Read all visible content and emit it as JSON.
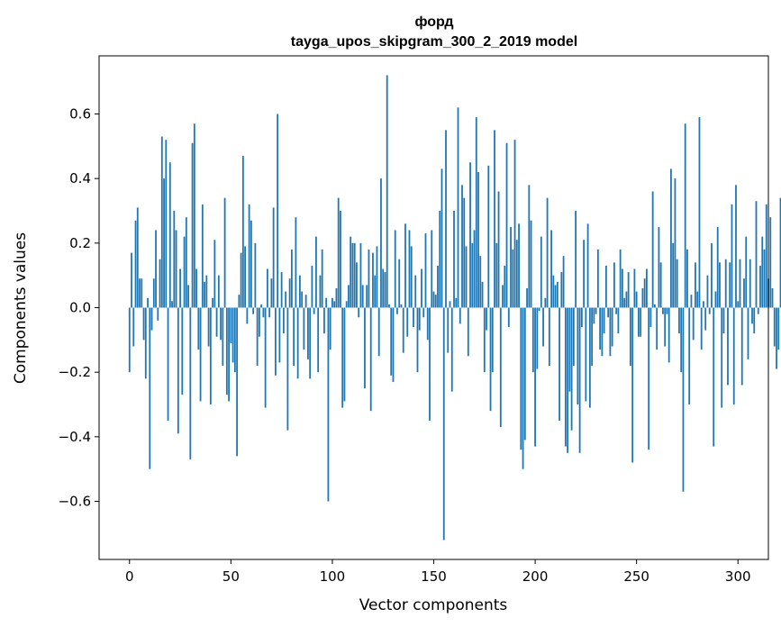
{
  "chart_data": {
    "type": "bar",
    "title": "форд",
    "subtitle": "tayga_upos_skipgram_300_2_2019 model",
    "xlabel": "Vector components",
    "ylabel": "Components values",
    "xlim": [
      -15,
      315
    ],
    "ylim": [
      -0.78,
      0.78
    ],
    "xticks": [
      0,
      50,
      100,
      150,
      200,
      250,
      300
    ],
    "xtick_labels": [
      "0",
      "50",
      "100",
      "150",
      "200",
      "250",
      "300"
    ],
    "yticks": [
      -0.6,
      -0.4,
      -0.2,
      0.0,
      0.2,
      0.4,
      0.6
    ],
    "ytick_labels": [
      "−0.6",
      "−0.4",
      "−0.2",
      "0.0",
      "0.2",
      "0.4",
      "0.6"
    ],
    "bar_color": "#1f77b4",
    "values": [
      -0.2,
      0.17,
      -0.12,
      0.27,
      0.31,
      0.09,
      0.09,
      -0.1,
      -0.22,
      0.03,
      -0.5,
      -0.07,
      0.09,
      0.24,
      -0.04,
      0.15,
      0.53,
      0.4,
      0.52,
      -0.35,
      0.45,
      0.02,
      0.3,
      0.24,
      -0.39,
      0.12,
      -0.27,
      0.22,
      0.28,
      0.07,
      -0.47,
      0.51,
      0.57,
      0.12,
      -0.13,
      -0.29,
      0.32,
      0.08,
      0.1,
      -0.12,
      -0.3,
      0.03,
      0.21,
      -0.09,
      0.1,
      -0.1,
      -0.18,
      0.34,
      -0.27,
      -0.29,
      -0.11,
      -0.17,
      -0.2,
      -0.46,
      0.04,
      0.17,
      0.47,
      0.19,
      -0.05,
      0.32,
      0.27,
      -0.02,
      0.2,
      -0.18,
      -0.09,
      0.01,
      -0.03,
      -0.31,
      0.12,
      -0.03,
      0.09,
      0.31,
      -0.21,
      0.6,
      -0.17,
      0.11,
      -0.08,
      0.05,
      -0.38,
      0.09,
      0.18,
      -0.18,
      0.28,
      -0.22,
      0.1,
      0.05,
      -0.13,
      0.04,
      -0.16,
      -0.22,
      0.13,
      -0.02,
      0.22,
      -0.2,
      0.1,
      0.18,
      -0.08,
      0.03,
      -0.6,
      -0.13,
      0.03,
      0.02,
      0.06,
      0.34,
      0.3,
      -0.31,
      -0.29,
      0.02,
      0.07,
      0.22,
      0.2,
      0.2,
      0.14,
      -0.03,
      0.2,
      0.07,
      -0.25,
      0.07,
      0.18,
      -0.32,
      0.17,
      0.1,
      0.19,
      -0.15,
      0.4,
      0.12,
      0.11,
      0.72,
      0.01,
      -0.21,
      -0.23,
      0.24,
      -0.02,
      0.15,
      0.01,
      -0.14,
      0.26,
      -0.09,
      0.24,
      0.19,
      -0.06,
      0.1,
      -0.2,
      -0.07,
      0.12,
      -0.03,
      0.23,
      -0.1,
      -0.35,
      0.24,
      0.05,
      0.04,
      0.13,
      0.3,
      0.43,
      -0.72,
      0.55,
      -0.14,
      0.02,
      -0.26,
      0.3,
      0.03,
      0.62,
      -0.05,
      0.38,
      0.34,
      0.19,
      -0.15,
      0.45,
      0.2,
      0.24,
      0.59,
      0.42,
      0.16,
      0.08,
      -0.2,
      -0.07,
      0.44,
      -0.32,
      -0.2,
      0.55,
      0.2,
      0.36,
      -0.37,
      0.07,
      0.13,
      0.51,
      -0.06,
      0.25,
      0.18,
      0.52,
      0.21,
      0.26,
      -0.44,
      -0.5,
      -0.41,
      0.06,
      0.38,
      0.27,
      -0.2,
      -0.43,
      -0.19,
      -0.01,
      0.22,
      -0.12,
      0.03,
      0.34,
      -0.18,
      0.24,
      0.1,
      0.07,
      0.08,
      -0.35,
      0.11,
      0.16,
      -0.43,
      -0.45,
      -0.26,
      -0.38,
      -0.18,
      0.3,
      -0.3,
      -0.45,
      -0.06,
      0.21,
      -0.29,
      0.26,
      -0.31,
      -0.18,
      -0.05,
      -0.02,
      0.18,
      -0.13,
      -0.15,
      -0.08,
      0.13,
      -0.03,
      -0.15,
      -0.12,
      0.14,
      -0.02,
      -0.08,
      0.18,
      0.12,
      0.03,
      0.05,
      0.11,
      -0.18,
      -0.48,
      0.12,
      0.05,
      -0.09,
      -0.09,
      0.06,
      0.09,
      0.12,
      -0.44,
      -0.06,
      0.36,
      0.01,
      -0.13,
      0.25,
      0.14,
      -0.02,
      -0.12,
      -0.02,
      -0.17,
      0.43,
      0.2,
      0.4,
      0.15,
      -0.08,
      -0.2,
      -0.57,
      0.57,
      0.18,
      -0.3,
      0.04,
      -0.1,
      0.14,
      0.05,
      0.59,
      -0.13,
      0.02,
      -0.07,
      0.1,
      -0.02,
      0.2,
      -0.43,
      0.05,
      0.25,
      0.14,
      -0.31,
      -0.08,
      0.15,
      -0.24,
      0.14,
      0.32,
      -0.3,
      0.38,
      0.02,
      0.15,
      -0.24,
      0.09,
      0.22,
      -0.16,
      0.15,
      -0.05,
      -0.08,
      0.33,
      -0.02,
      0.13,
      0.22,
      0.18,
      0.32,
      0.09,
      0.28,
      0.06,
      -0.12,
      -0.19,
      -0.13,
      0.34,
      -0.02
    ]
  }
}
